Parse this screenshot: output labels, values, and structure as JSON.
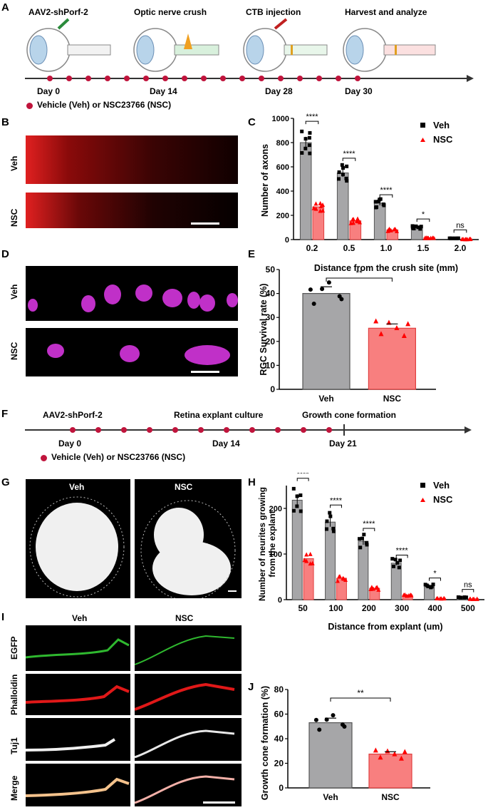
{
  "panels": {
    "A": "A",
    "B": "B",
    "C": "C",
    "D": "D",
    "E": "E",
    "F": "F",
    "G": "G",
    "H": "H",
    "I": "I",
    "J": "J"
  },
  "panelA": {
    "steps": [
      "AAV2-shPorf-2",
      "Optic nerve crush",
      "CTB injection",
      "Harvest and analyze"
    ],
    "days": [
      "Day 0",
      "Day 14",
      "Day 28",
      "Day 30"
    ],
    "legend": "Vehicle (Veh) or NSC23766 (NSC)"
  },
  "panelB": {
    "veh": "Veh",
    "nsc": "NSC"
  },
  "panelD": {
    "veh": "Veh",
    "nsc": "NSC"
  },
  "panelF": {
    "steps": [
      "AAV2-shPorf-2",
      "Retina explant culture",
      "Growth cone formation"
    ],
    "days": [
      "Day 0",
      "Day 14",
      "Day 21"
    ],
    "legend": "Vehicle (Veh) or NSC23766 (NSC)"
  },
  "panelG": {
    "veh": "Veh",
    "nsc": "NSC"
  },
  "panelI": {
    "veh": "Veh",
    "nsc": "NSC",
    "rows": [
      "EGFP",
      "Phalloidin",
      "Tuj1",
      "Merge"
    ]
  },
  "colors": {
    "veh": "#a6a6a8",
    "nsc": "#f87f7f",
    "nsc_marker": "#ff0000",
    "veh_marker": "#000000"
  },
  "chart_data": [
    {
      "id": "C",
      "type": "bar",
      "ylabel": "Number of axons",
      "xlabel": "Distance from the crush site (mm)",
      "categories": [
        "0.2",
        "0.5",
        "1.0",
        "1.5",
        "2.0"
      ],
      "ylim": [
        0,
        1000
      ],
      "yticks": [
        "0",
        "200",
        "400",
        "600",
        "800",
        "1000"
      ],
      "series": [
        {
          "name": "Veh",
          "values": [
            800,
            550,
            300,
            100,
            10
          ]
        },
        {
          "name": "NSC",
          "values": [
            270,
            155,
            80,
            15,
            5
          ]
        }
      ],
      "significance": [
        "****",
        "****",
        "****",
        "*",
        "ns"
      ]
    },
    {
      "id": "E",
      "type": "bar",
      "ylabel": "RGC Survival rate (%)",
      "categories": [
        "Veh",
        "NSC"
      ],
      "ylim": [
        0,
        50
      ],
      "yticks": [
        "0",
        "10",
        "20",
        "30",
        "40",
        "50"
      ],
      "values": [
        40,
        25.5
      ],
      "significance": [
        "**"
      ]
    },
    {
      "id": "H",
      "type": "bar",
      "ylabel": "Number of neurites growing from the explant",
      "xlabel": "Distance from explant (um)",
      "categories": [
        "50",
        "100",
        "200",
        "300",
        "400",
        "500"
      ],
      "ylim": [
        0,
        250
      ],
      "yticks": [
        "0",
        "100",
        "200"
      ],
      "series": [
        {
          "name": "Veh",
          "values": [
            218,
            170,
            128,
            80,
            30,
            5
          ]
        },
        {
          "name": "NSC",
          "values": [
            90,
            47,
            25,
            10,
            3,
            2
          ]
        }
      ],
      "significance": [
        "****",
        "****",
        "****",
        "****",
        "*",
        "ns"
      ]
    },
    {
      "id": "J",
      "type": "bar",
      "ylabel": "Growth cone formation (%)",
      "categories": [
        "Veh",
        "NSC"
      ],
      "ylim": [
        0,
        80
      ],
      "yticks": [
        "0",
        "20",
        "40",
        "60",
        "80"
      ],
      "values": [
        53,
        27.5
      ],
      "significance": [
        "**"
      ]
    }
  ]
}
